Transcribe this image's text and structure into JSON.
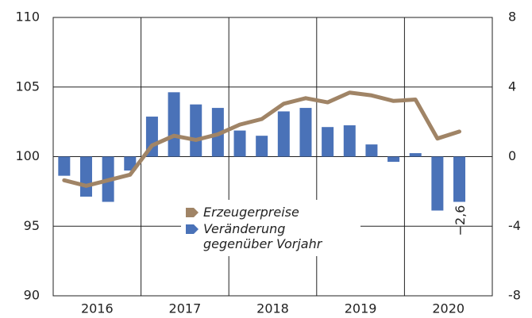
{
  "chart_data": {
    "type": "bar_line",
    "categories": [
      null,
      null,
      null,
      null,
      null,
      null,
      null,
      null,
      null,
      null,
      null,
      null,
      null,
      null,
      null,
      null,
      null,
      null,
      null
    ],
    "year_labels": [
      "2016",
      "2017",
      "2018",
      "2019",
      "2020"
    ],
    "series": [
      {
        "name": "Erzeugerpreise",
        "type": "line",
        "color": "#a08466",
        "axis": "y",
        "values": [
          98.3,
          97.9,
          98.3,
          98.7,
          100.8,
          101.5,
          101.2,
          101.6,
          102.3,
          102.7,
          103.8,
          104.2,
          103.9,
          104.6,
          104.4,
          104.0,
          104.1,
          101.3,
          101.8
        ]
      },
      {
        "name": "Veränderung gegenüber Vorjahr",
        "type": "bar",
        "color": "#4a72b8",
        "axis": "y2",
        "values": [
          -1.1,
          -2.3,
          -2.6,
          -0.8,
          2.3,
          3.7,
          3.0,
          2.8,
          1.5,
          1.2,
          2.6,
          2.8,
          1.7,
          1.8,
          0.7,
          -0.3,
          0.2,
          -3.1,
          -2.6
        ],
        "value_labels": [
          null,
          null,
          null,
          null,
          null,
          null,
          null,
          null,
          null,
          null,
          null,
          null,
          null,
          null,
          null,
          null,
          null,
          null,
          "−2,6"
        ]
      }
    ],
    "ylim": [
      90,
      110
    ],
    "yticks": [
      90,
      95,
      100,
      105,
      110
    ],
    "y2lim": [
      -8,
      8
    ],
    "y2ticks": [
      -8,
      -4,
      0,
      4,
      8
    ],
    "grid": true
  }
}
